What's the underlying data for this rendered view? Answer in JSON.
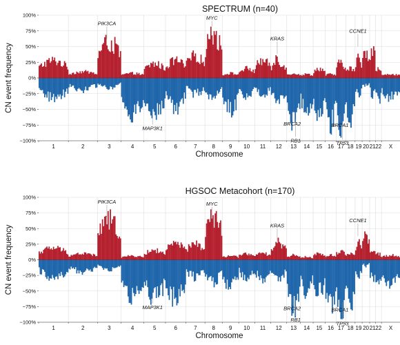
{
  "colors": {
    "gain": "#b5202e",
    "loss": "#1f66ab",
    "grid": "#dcdcdc",
    "gene_line": "#8c8c8c"
  },
  "chart_data": [
    {
      "type": "area",
      "title": "SPECTRUM (n=40)",
      "xlabel": "Chromosome",
      "ylabel": "CN event frequency",
      "ylim": [
        -1,
        1
      ],
      "yticks": [
        "100%",
        "75%",
        "50%",
        "25%",
        "0%",
        "−25%",
        "−50%",
        "−75%",
        "−100%"
      ],
      "x_categories": [
        "1",
        "2",
        "3",
        "4",
        "5",
        "6",
        "7",
        "8",
        "9",
        "10",
        "11",
        "12",
        "13",
        "14",
        "15",
        "16",
        "17",
        "18",
        "19",
        "20",
        "21",
        "22",
        "X"
      ],
      "series": [
        {
          "name": "",
          "kind": "gain",
          "by_chromosome": [
            0.22,
            0.08,
            0.45,
            0.06,
            0.18,
            0.22,
            0.28,
            0.55,
            0.06,
            0.12,
            0.22,
            0.2,
            0.06,
            0.05,
            0.12,
            0.05,
            0.2,
            0.12,
            0.25,
            0.35,
            0.4,
            0.12,
            0.05
          ]
        },
        {
          "name": "",
          "kind": "loss",
          "by_chromosome": [
            -0.25,
            -0.15,
            -0.12,
            -0.45,
            -0.45,
            -0.38,
            -0.2,
            -0.25,
            -0.4,
            -0.22,
            -0.2,
            -0.28,
            -0.55,
            -0.4,
            -0.45,
            -0.58,
            -0.62,
            -0.55,
            -0.2,
            -0.1,
            -0.22,
            -0.3,
            -0.25
          ]
        }
      ],
      "annotations": [
        {
          "gene": "PIK3CA",
          "chromosome": "3",
          "value": 0.62
        },
        {
          "gene": "MYC",
          "chromosome": "8",
          "value": 0.82
        },
        {
          "gene": "KRAS",
          "chromosome": "12",
          "value": 0.38
        },
        {
          "gene": "CCNE1",
          "chromosome": "19",
          "value": 0.5
        },
        {
          "gene": "MAP3K1",
          "chromosome": "5",
          "value": -0.62
        },
        {
          "gene": "BRCA2",
          "chromosome": "13",
          "value": -0.55
        },
        {
          "gene": "RB1",
          "chromosome": "13",
          "value": -0.66
        },
        {
          "gene": "BRCA1",
          "chromosome": "17",
          "value": -0.57
        },
        {
          "gene": "TP53",
          "chromosome": "17",
          "value": -0.72
        }
      ]
    },
    {
      "type": "area",
      "title": "HGSOC Metacohort (n=170)",
      "xlabel": "Chromosome",
      "ylabel": "CN event frequency",
      "ylim": [
        -1,
        1
      ],
      "yticks": [
        "100%",
        "75%",
        "50%",
        "25%",
        "0%",
        "−25%",
        "−50%",
        "−75%",
        "−100%"
      ],
      "x_categories": [
        "1",
        "2",
        "3",
        "4",
        "5",
        "6",
        "7",
        "8",
        "9",
        "10",
        "11",
        "12",
        "13",
        "14",
        "15",
        "16",
        "17",
        "18",
        "19",
        "20",
        "21",
        "22",
        "X"
      ],
      "series": [
        {
          "name": "",
          "kind": "gain",
          "by_chromosome": [
            0.15,
            0.08,
            0.5,
            0.05,
            0.12,
            0.2,
            0.2,
            0.55,
            0.05,
            0.08,
            0.08,
            0.22,
            0.06,
            0.04,
            0.08,
            0.06,
            0.12,
            0.08,
            0.22,
            0.3,
            0.12,
            0.08,
            0.06
          ]
        },
        {
          "name": "",
          "kind": "loss",
          "by_chromosome": [
            -0.22,
            -0.15,
            -0.12,
            -0.45,
            -0.48,
            -0.5,
            -0.22,
            -0.28,
            -0.35,
            -0.22,
            -0.25,
            -0.22,
            -0.6,
            -0.4,
            -0.42,
            -0.62,
            -0.65,
            -0.6,
            -0.2,
            -0.08,
            -0.25,
            -0.35,
            -0.3
          ]
        }
      ],
      "annotations": [
        {
          "gene": "PIK3CA",
          "chromosome": "3",
          "value": 0.68
        },
        {
          "gene": "MYC",
          "chromosome": "8",
          "value": 0.65
        },
        {
          "gene": "KRAS",
          "chromosome": "12",
          "value": 0.3
        },
        {
          "gene": "CCNE1",
          "chromosome": "19",
          "value": 0.38
        },
        {
          "gene": "MAP3K1",
          "chromosome": "5",
          "value": -0.58
        },
        {
          "gene": "BRCA2",
          "chromosome": "13",
          "value": -0.6
        },
        {
          "gene": "RB1",
          "chromosome": "13",
          "value": -0.62
        },
        {
          "gene": "BRCA1",
          "chromosome": "17",
          "value": -0.62
        },
        {
          "gene": "TP53",
          "chromosome": "17",
          "value": -0.68
        }
      ]
    }
  ]
}
